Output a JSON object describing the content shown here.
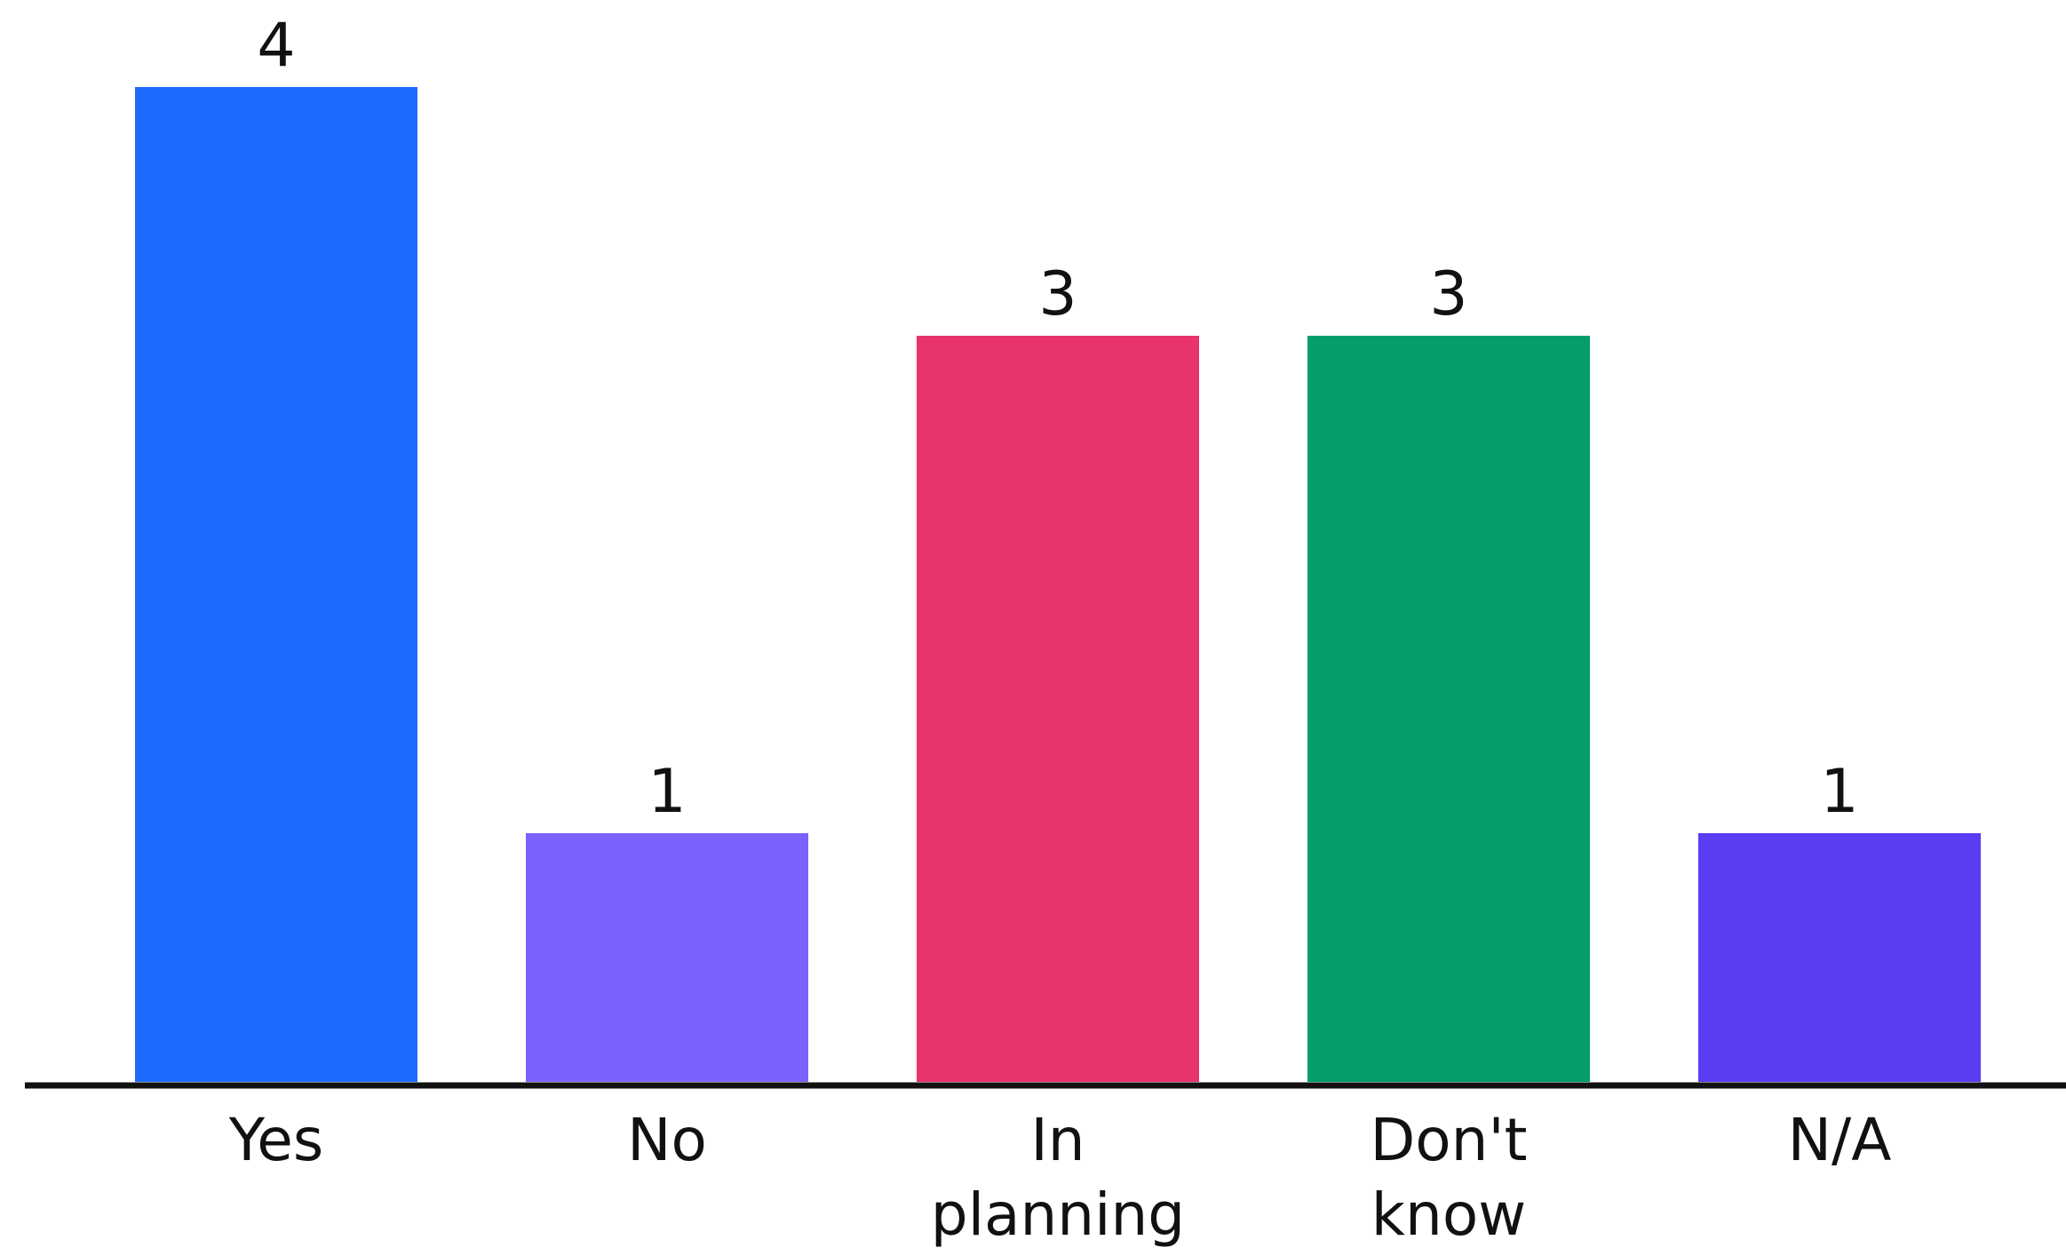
{
  "chart_data": {
    "type": "bar",
    "categories": [
      [
        "Yes"
      ],
      [
        "No"
      ],
      [
        "In",
        "planning"
      ],
      [
        "Don't",
        "know"
      ],
      [
        "N/A"
      ]
    ],
    "values": [
      4,
      1,
      3,
      3,
      1
    ],
    "colors": [
      "#1e6bff",
      "#7b61ff",
      "#e8336d",
      "#049e6b",
      "#5b3cf2"
    ],
    "data_labels": true,
    "title": "",
    "xlabel": "",
    "ylabel": "",
    "ylim": [
      0,
      4
    ],
    "grid": false,
    "legend": "none"
  }
}
